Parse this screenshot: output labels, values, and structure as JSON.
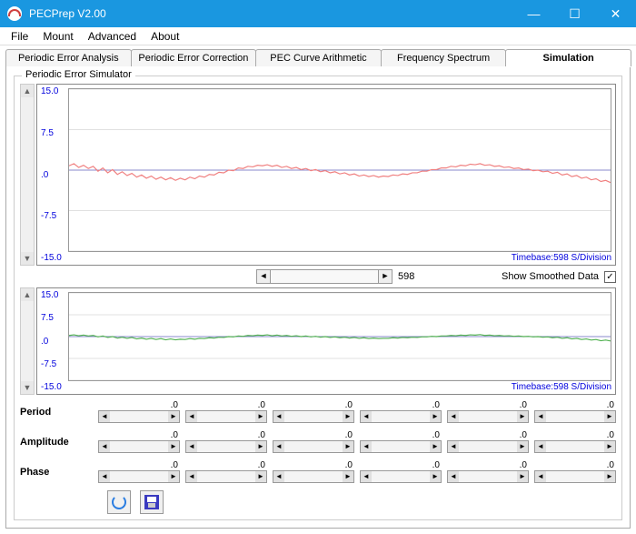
{
  "window": {
    "title": "PECPrep V2.00"
  },
  "menubar": {
    "items": [
      "File",
      "Mount",
      "Advanced",
      "About"
    ]
  },
  "tabs": {
    "items": [
      "Periodic Error Analysis",
      "Periodic Error Correction",
      "PEC Curve Arithmetic",
      "Frequency Spectrum",
      "Simulation"
    ],
    "active": 4
  },
  "groupbox": {
    "title": "Periodic Error Simulator"
  },
  "chart1": {
    "type": "line",
    "ylabels": [
      "15.0",
      "7.5",
      ".0",
      "-7.5",
      "-15.0"
    ],
    "ylim": [
      -15,
      15
    ],
    "series_color": "#f08080",
    "grid_color": "#c0c0c0",
    "background_color": "#ffffff",
    "timebase": "Timebase:598 S/Division",
    "data": [
      0.8,
      1.2,
      0.5,
      0.9,
      0.3,
      0.7,
      -0.2,
      0.4,
      -0.5,
      0.1,
      -0.8,
      -0.3,
      -1.0,
      -0.6,
      -1.3,
      -0.9,
      -1.5,
      -1.1,
      -1.7,
      -1.3,
      -1.8,
      -1.4,
      -1.9,
      -1.5,
      -1.8,
      -1.3,
      -1.6,
      -1.1,
      -1.3,
      -0.8,
      -0.9,
      -0.4,
      -0.5,
      0.0,
      -0.1,
      0.4,
      0.3,
      0.7,
      0.6,
      0.9,
      0.8,
      1.0,
      0.7,
      0.9,
      0.5,
      0.7,
      0.3,
      0.5,
      0.1,
      0.3,
      -0.1,
      0.1,
      -0.3,
      -0.1,
      -0.5,
      -0.3,
      -0.7,
      -0.5,
      -0.9,
      -0.7,
      -1.1,
      -0.9,
      -1.2,
      -1.0,
      -1.3,
      -1.1,
      -1.2,
      -0.9,
      -1.0,
      -0.7,
      -0.8,
      -0.5,
      -0.5,
      -0.2,
      -0.2,
      0.1,
      0.1,
      0.4,
      0.4,
      0.7,
      0.6,
      0.9,
      0.8,
      1.1,
      1.0,
      1.2,
      0.9,
      1.0,
      0.7,
      0.8,
      0.5,
      0.6,
      0.3,
      0.4,
      0.1,
      0.2,
      -0.1,
      0.0,
      -0.3,
      -0.2,
      -0.6,
      -0.4,
      -0.9,
      -0.7,
      -1.2,
      -1.0,
      -1.5,
      -1.3,
      -1.8,
      -1.6,
      -2.1,
      -1.9,
      -2.3
    ]
  },
  "hscroll": {
    "value": "598"
  },
  "smoothed": {
    "label": "Show Smoothed Data",
    "checked": true
  },
  "chart2": {
    "type": "line",
    "ylabels": [
      "15.0",
      "7.5",
      ".0",
      "-7.5",
      "-15.0"
    ],
    "ylim": [
      -15,
      15
    ],
    "series_color": "#50b050",
    "grid_color": "#c0c0c0",
    "background_color": "#ffffff",
    "timebase": "Timebase:598 S/Division",
    "data": [
      0.4,
      0.6,
      0.3,
      0.5,
      0.2,
      0.4,
      -0.1,
      0.2,
      -0.3,
      0.0,
      -0.5,
      -0.2,
      -0.6,
      -0.3,
      -0.8,
      -0.5,
      -0.9,
      -0.6,
      -1.0,
      -0.7,
      -1.1,
      -0.8,
      -1.1,
      -0.9,
      -1.0,
      -0.7,
      -0.9,
      -0.6,
      -0.7,
      -0.4,
      -0.5,
      -0.2,
      -0.3,
      0.0,
      -0.1,
      0.2,
      0.1,
      0.4,
      0.3,
      0.5,
      0.4,
      0.6,
      0.3,
      0.5,
      0.2,
      0.4,
      0.1,
      0.3,
      0.0,
      0.2,
      -0.1,
      0.1,
      -0.2,
      0.0,
      -0.3,
      -0.1,
      -0.4,
      -0.2,
      -0.5,
      -0.3,
      -0.6,
      -0.4,
      -0.7,
      -0.5,
      -0.7,
      -0.6,
      -0.6,
      -0.4,
      -0.5,
      -0.3,
      -0.4,
      -0.2,
      -0.3,
      -0.1,
      -0.1,
      0.1,
      0.0,
      0.2,
      0.2,
      0.4,
      0.3,
      0.5,
      0.4,
      0.6,
      0.5,
      0.7,
      0.4,
      0.5,
      0.3,
      0.4,
      0.2,
      0.3,
      0.1,
      0.2,
      0.0,
      0.1,
      -0.1,
      0.0,
      -0.2,
      -0.1,
      -0.4,
      -0.2,
      -0.6,
      -0.4,
      -0.8,
      -0.6,
      -1.0,
      -0.8,
      -1.2,
      -1.0,
      -1.4,
      -1.2,
      -1.5
    ]
  },
  "params": {
    "rows": [
      {
        "label": "Period",
        "values": [
          ".0",
          ".0",
          ".0",
          ".0",
          ".0",
          ".0"
        ]
      },
      {
        "label": "Amplitude",
        "values": [
          ".0",
          ".0",
          ".0",
          ".0",
          ".0",
          ".0"
        ]
      },
      {
        "label": "Phase",
        "values": [
          ".0",
          ".0",
          ".0",
          ".0",
          ".0",
          ".0"
        ]
      }
    ]
  }
}
